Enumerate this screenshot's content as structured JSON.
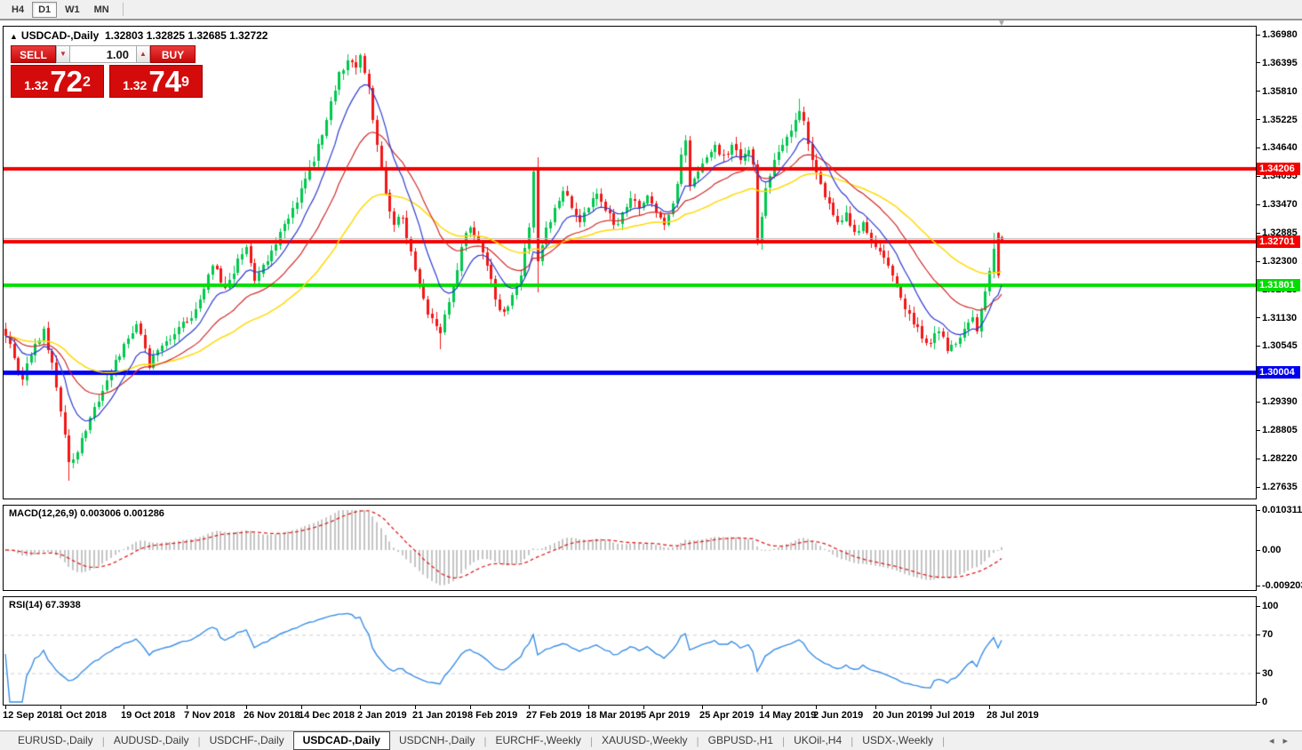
{
  "toolbar": {
    "timeframes": [
      "H4",
      "D1",
      "W1",
      "MN"
    ],
    "active": "D1"
  },
  "window": {
    "info_symbol": "USDCAD-,Daily",
    "info_ohlc": "1.32803 1.32825 1.32685 1.32722",
    "shift_marker": "▼"
  },
  "trade_panel": {
    "sell_label": "SELL",
    "buy_label": "BUY",
    "volume": "1.00",
    "spin_down": "▼",
    "spin_up": "▲",
    "sell_price": {
      "prefix": "1.32",
      "big": "72",
      "sup": "2"
    },
    "buy_price": {
      "prefix": "1.32",
      "big": "74",
      "sup": "9"
    },
    "accent_color": "#d40b0b"
  },
  "chart_data": {
    "type": "candlestick",
    "symbol": "USDCAD-",
    "period": "Daily",
    "last_ohlc": {
      "open": 1.32803,
      "high": 1.32825,
      "low": 1.32685,
      "close": 1.32722
    },
    "price_axis": {
      "max": 1.3698,
      "min": 1.27635,
      "ticks": [
        "1.36980",
        "1.36395",
        "1.35810",
        "1.35225",
        "1.34640",
        "1.34055",
        "1.33470",
        "1.32885",
        "1.32300",
        "1.31715",
        "1.31130",
        "1.30545",
        "1.29390",
        "1.28805",
        "1.28220",
        "1.27635"
      ]
    },
    "h_lines": [
      {
        "value": 1.34206,
        "label": "1.34206",
        "color": "#f50000",
        "width": 4
      },
      {
        "value": 1.32701,
        "label": "1.32701",
        "color": "#f50000",
        "width": 4
      },
      {
        "value": 1.31801,
        "label": "1.31801",
        "color": "#00dd00",
        "width": 4
      },
      {
        "value": 1.30004,
        "label": "1.30004",
        "color": "#0000f0",
        "width": 5
      }
    ],
    "current_price_line": {
      "value": 1.32722,
      "color": "#bebebe"
    },
    "x_labels": [
      {
        "text": "12 Sep 2018",
        "i": 0
      },
      {
        "text": "1 Oct 2018",
        "i": 13
      },
      {
        "text": "19 Oct 2018",
        "i": 28
      },
      {
        "text": "7 Nov 2018",
        "i": 43
      },
      {
        "text": "26 Nov 2018",
        "i": 57
      },
      {
        "text": "14 Dec 2018",
        "i": 70
      },
      {
        "text": "2 Jan 2019",
        "i": 84
      },
      {
        "text": "21 Jan 2019",
        "i": 97
      },
      {
        "text": "8 Feb 2019",
        "i": 110
      },
      {
        "text": "27 Feb 2019",
        "i": 124
      },
      {
        "text": "18 Mar 2019",
        "i": 138
      },
      {
        "text": "5 Apr 2019",
        "i": 151
      },
      {
        "text": "25 Apr 2019",
        "i": 165
      },
      {
        "text": "14 May 2019",
        "i": 179
      },
      {
        "text": "2 Jun 2019",
        "i": 192
      },
      {
        "text": "20 Jun 2019",
        "i": 206
      },
      {
        "text": "9 Jul 2019",
        "i": 219
      },
      {
        "text": "28 Jul 2019",
        "i": 233
      }
    ],
    "candles": {
      "count": 237,
      "up_color": "#00c84e",
      "down_color": "#f31616",
      "close_anchors": [
        [
          0,
          1.3075
        ],
        [
          2,
          1.303
        ],
        [
          4,
          1.2985
        ],
        [
          6,
          1.3035
        ],
        [
          9,
          1.309
        ],
        [
          11,
          1.302
        ],
        [
          13,
          1.292
        ],
        [
          15,
          1.2815
        ],
        [
          17,
          1.2835
        ],
        [
          19,
          1.288
        ],
        [
          22,
          1.294
        ],
        [
          25,
          1.3
        ],
        [
          28,
          1.306
        ],
        [
          31,
          1.31
        ],
        [
          34,
          1.301
        ],
        [
          37,
          1.3055
        ],
        [
          40,
          1.308
        ],
        [
          43,
          1.3105
        ],
        [
          46,
          1.315
        ],
        [
          49,
          1.322
        ],
        [
          52,
          1.3175
        ],
        [
          55,
          1.3235
        ],
        [
          57,
          1.326
        ],
        [
          59,
          1.319
        ],
        [
          62,
          1.323
        ],
        [
          65,
          1.329
        ],
        [
          68,
          1.334
        ],
        [
          71,
          1.34
        ],
        [
          73,
          1.3435
        ],
        [
          75,
          1.349
        ],
        [
          77,
          1.356
        ],
        [
          79,
          1.362
        ],
        [
          81,
          1.3645
        ],
        [
          83,
          1.363
        ],
        [
          84,
          1.3655
        ],
        [
          86,
          1.359
        ],
        [
          88,
          1.347
        ],
        [
          90,
          1.337
        ],
        [
          92,
          1.3305
        ],
        [
          94,
          1.332
        ],
        [
          96,
          1.325
        ],
        [
          98,
          1.318
        ],
        [
          100,
          1.312
        ],
        [
          103,
          1.3082
        ],
        [
          106,
          1.318
        ],
        [
          108,
          1.326
        ],
        [
          110,
          1.33
        ],
        [
          112,
          1.327
        ],
        [
          114,
          1.322
        ],
        [
          116,
          1.315
        ],
        [
          118,
          1.3125
        ],
        [
          120,
          1.316
        ],
        [
          122,
          1.32
        ],
        [
          124,
          1.33
        ],
        [
          125,
          1.3415
        ],
        [
          126,
          1.323
        ],
        [
          128,
          1.33
        ],
        [
          130,
          1.334
        ],
        [
          132,
          1.3375
        ],
        [
          134,
          1.334
        ],
        [
          136,
          1.331
        ],
        [
          138,
          1.334
        ],
        [
          140,
          1.337
        ],
        [
          142,
          1.3335
        ],
        [
          144,
          1.3305
        ],
        [
          146,
          1.333
        ],
        [
          148,
          1.336
        ],
        [
          150,
          1.334
        ],
        [
          152,
          1.3365
        ],
        [
          154,
          1.333
        ],
        [
          156,
          1.3305
        ],
        [
          158,
          1.335
        ],
        [
          160,
          1.345
        ],
        [
          161,
          1.348
        ],
        [
          162,
          1.3385
        ],
        [
          164,
          1.3415
        ],
        [
          166,
          1.3445
        ],
        [
          168,
          1.347
        ],
        [
          170,
          1.345
        ],
        [
          172,
          1.347
        ],
        [
          174,
          1.344
        ],
        [
          176,
          1.346
        ],
        [
          177,
          1.343
        ],
        [
          178,
          1.327
        ],
        [
          180,
          1.338
        ],
        [
          182,
          1.344
        ],
        [
          184,
          1.347
        ],
        [
          186,
          1.35
        ],
        [
          188,
          1.354
        ],
        [
          189,
          1.352
        ],
        [
          191,
          1.344
        ],
        [
          193,
          1.339
        ],
        [
          195,
          1.335
        ],
        [
          197,
          1.331
        ],
        [
          199,
          1.333
        ],
        [
          201,
          1.329
        ],
        [
          203,
          1.331
        ],
        [
          205,
          1.327
        ],
        [
          207,
          1.325
        ],
        [
          209,
          1.322
        ],
        [
          211,
          1.318
        ],
        [
          213,
          1.313
        ],
        [
          215,
          1.31
        ],
        [
          217,
          1.307
        ],
        [
          219,
          1.306
        ],
        [
          221,
          1.3085
        ],
        [
          223,
          1.3045
        ],
        [
          225,
          1.306
        ],
        [
          227,
          1.309
        ],
        [
          229,
          1.3115
        ],
        [
          230,
          1.3085
        ],
        [
          231,
          1.313
        ],
        [
          232,
          1.3168
        ],
        [
          233,
          1.321
        ],
        [
          234,
          1.3255
        ],
        [
          235,
          1.32
        ],
        [
          236,
          1.32722
        ]
      ],
      "overrides": {
        "15": {
          "l": 1.2776
        },
        "103": {
          "l": 1.3048
        },
        "126": {
          "o": 1.342,
          "h": 1.3445,
          "l": 1.3165,
          "c": 1.323
        },
        "188": {
          "h": 1.3565
        },
        "234": {
          "h": 1.3288
        },
        "235": {
          "o": 1.3288,
          "h": 1.329,
          "l": 1.3195,
          "c": 1.32
        },
        "236": {
          "o": 1.32803,
          "h": 1.32825,
          "l": 1.32685,
          "c": 1.32722
        }
      }
    },
    "moving_averages": [
      {
        "period": 10,
        "color": "#2e3bd0",
        "width": 1.2
      },
      {
        "period": 24,
        "color": "#d02b2b",
        "width": 1.2
      },
      {
        "period": 52,
        "color": "#ffd900",
        "width": 1.5
      }
    ],
    "macd": {
      "label": "MACD(12,26,9)",
      "value_main": "0.003006",
      "value_signal": "0.001286",
      "params": [
        12,
        26,
        9
      ],
      "max": 0.010311,
      "min": -0.009203,
      "ticks": [
        {
          "v": 0.010311,
          "text": "0.010311"
        },
        {
          "v": 0,
          "text": "0.00"
        },
        {
          "v": -0.009203,
          "text": "-0.009203"
        }
      ],
      "hist_color": "#c4c4c4",
      "signal_color": "#e02020"
    },
    "rsi": {
      "label": "RSI(14)",
      "value": "67.3938",
      "period": 14,
      "ticks": [
        100,
        70,
        30,
        0
      ],
      "levels": [
        70,
        30
      ],
      "color": "#3a8ee6",
      "level_color": "#cfcfcf"
    }
  },
  "tabs": {
    "items": [
      "EURUSD-,Daily",
      "AUDUSD-,Daily",
      "USDCHF-,Daily",
      "USDCAD-,Daily",
      "USDCNH-,Daily",
      "EURCHF-,Weekly",
      "XAUUSD-,Weekly",
      "GBPUSD-,H1",
      "UKOil-,H4",
      "USDX-,Weekly"
    ],
    "active_index": 3,
    "scroll_left": "◂",
    "scroll_right": "▸"
  }
}
